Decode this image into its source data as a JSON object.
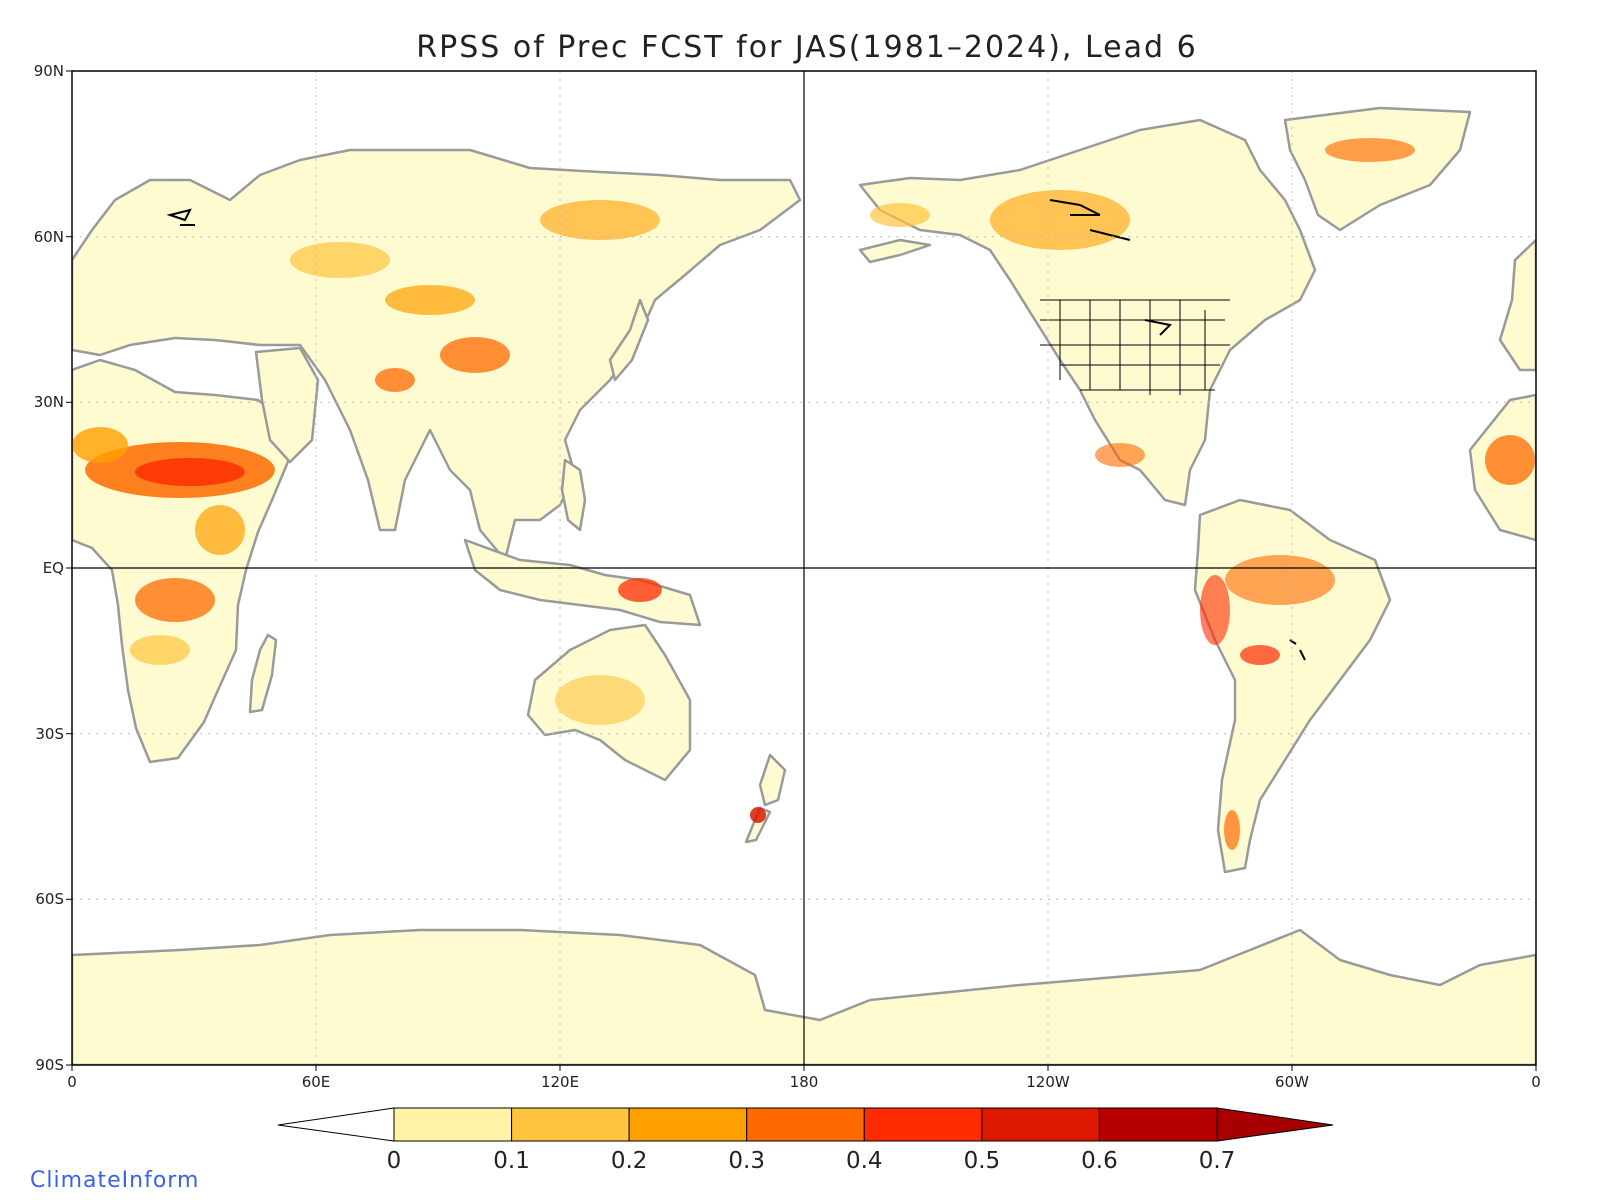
{
  "title": "RPSS of Prec FCST for JAS(1981–2024), Lead 6",
  "credit": "ClimateInform",
  "lat_labels": [
    "90N",
    "60N",
    "30N",
    "EQ",
    "30S",
    "60S",
    "90S"
  ],
  "lon_labels": [
    "0",
    "60E",
    "120E",
    "180",
    "120W",
    "60W",
    "0"
  ],
  "colorbar": {
    "ticks": [
      "0",
      "0.1",
      "0.2",
      "0.3",
      "0.4",
      "0.5",
      "0.6",
      "0.7"
    ],
    "below_color": "#ffffff",
    "colors": [
      "#fff3a6",
      "#ffc43d",
      "#ffa000",
      "#ff6a00",
      "#ff2b00",
      "#dd1800",
      "#b70000"
    ],
    "above_color": "#a80000"
  },
  "colors": {
    "land": "#fffbd0",
    "coast": "#9a9a9a",
    "lakes": "#000000",
    "grid": "#bbbbbb"
  }
}
